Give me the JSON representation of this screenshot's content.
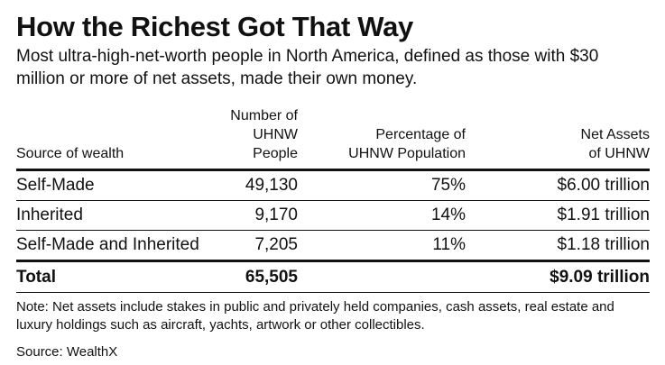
{
  "title": "How the Richest Got That Way",
  "subtitle": "Most ultra-high-net-worth people in North America, defined as those with $30 million or more of net assets, made their own money.",
  "chart_data": {
    "type": "table",
    "columns": [
      {
        "line1": "",
        "line2": "Source of wealth"
      },
      {
        "line1": "Number of",
        "line2": "UHNW People"
      },
      {
        "line1": "Percentage of",
        "line2": "UHNW Population"
      },
      {
        "line1": "Net Assets",
        "line2": "of UHNW"
      }
    ],
    "rows": [
      [
        "Self-Made",
        "49,130",
        "75%",
        "$6.00 trillion"
      ],
      [
        "Inherited",
        "9,170",
        "14%",
        "$1.91 trillion"
      ],
      [
        "Self-Made and Inherited",
        "7,205",
        "11%",
        "$1.18 trillion"
      ]
    ],
    "total": [
      "Total",
      "65,505",
      "",
      "$9.09 trillion"
    ]
  },
  "note": "Note: Net assets include stakes in public and privately held companies, cash assets, real estate and luxury holdings such as aircraft, yachts, artwork or other collectibles.",
  "source": "Source: WealthX"
}
